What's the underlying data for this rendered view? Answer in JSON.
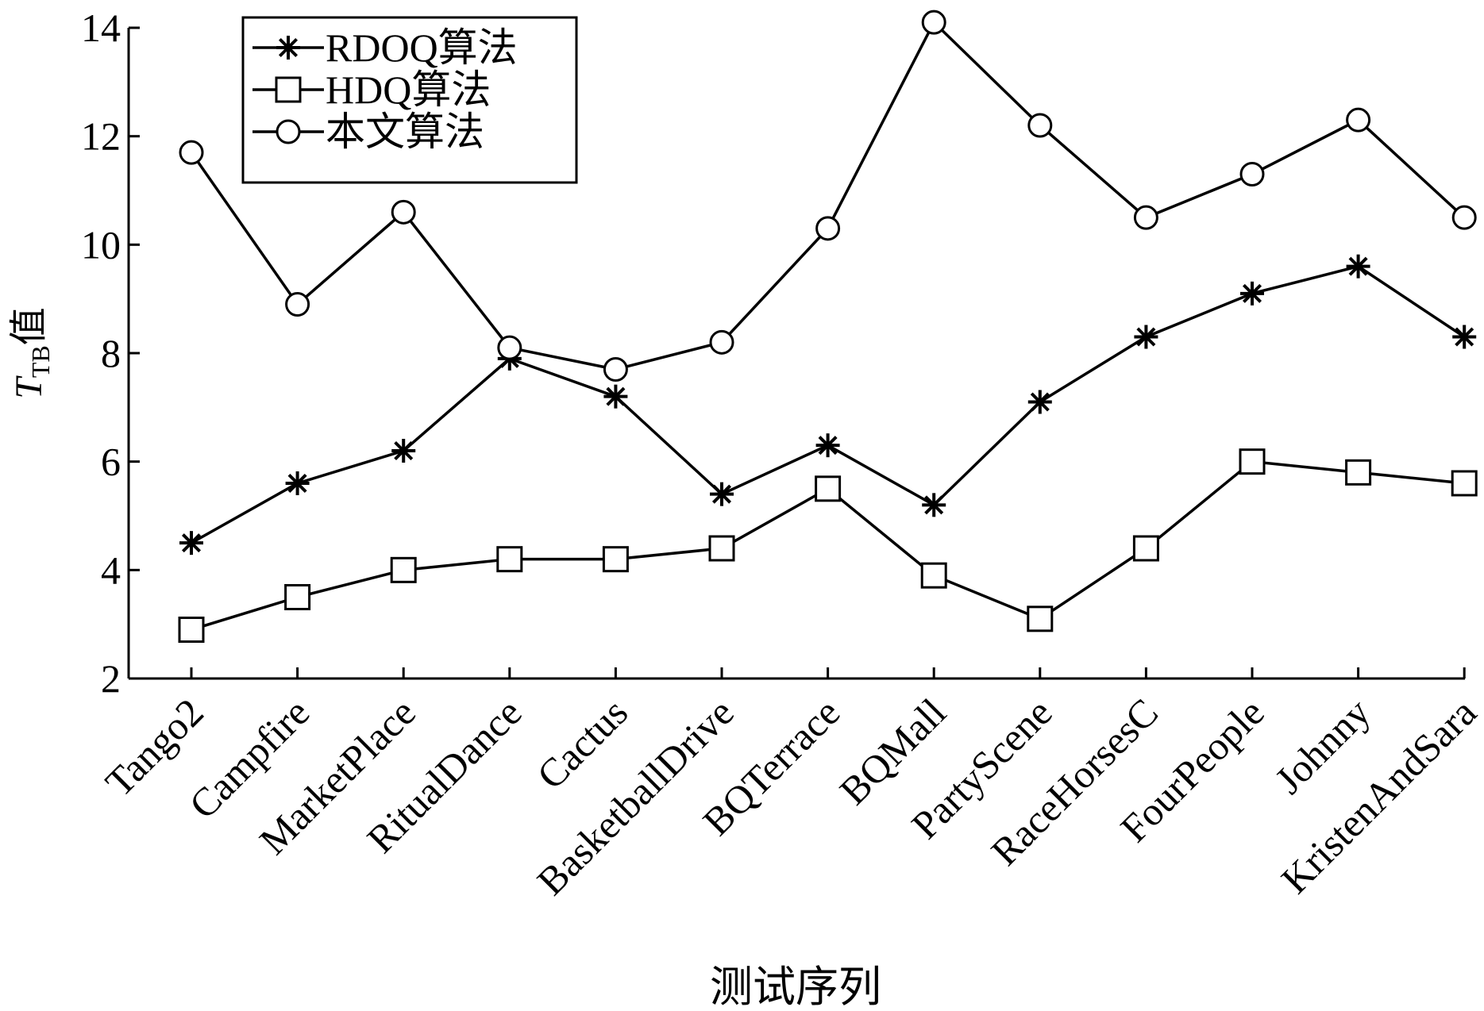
{
  "chart_data": {
    "type": "line",
    "xlabel": "测试序列",
    "ylabel_main": "T",
    "ylabel_sub": "TB",
    "ylabel_suffix": "值",
    "ylim": [
      2,
      14
    ],
    "yticks": [
      2,
      4,
      6,
      8,
      10,
      12,
      14
    ],
    "grid": false,
    "legend_position": "top-left",
    "categories": [
      "Tango2",
      "Campfire",
      "MarketPlace",
      "RitualDance",
      "Cactus",
      "BasketballDrive",
      "BQTerrace",
      "BQMall",
      "PartyScene",
      "RaceHorsesC",
      "FourPeople",
      "Johnny",
      "KristenAndSara"
    ],
    "series": [
      {
        "name": "RDOQ算法",
        "marker": "asterisk",
        "values": [
          4.5,
          5.6,
          6.2,
          7.9,
          7.2,
          5.4,
          6.3,
          5.2,
          7.1,
          8.3,
          9.1,
          9.6,
          8.3
        ]
      },
      {
        "name": "HDQ算法",
        "marker": "square",
        "values": [
          2.9,
          3.5,
          4.0,
          4.2,
          4.2,
          4.4,
          5.5,
          3.9,
          3.1,
          4.4,
          6.0,
          5.8,
          5.6
        ]
      },
      {
        "name": "本文算法",
        "marker": "circle",
        "values": [
          11.7,
          8.9,
          10.6,
          8.1,
          7.7,
          8.2,
          10.3,
          14.1,
          12.2,
          10.5,
          11.3,
          12.3,
          10.5
        ]
      }
    ],
    "colors": {
      "line": "#000000",
      "background": "#ffffff"
    }
  }
}
